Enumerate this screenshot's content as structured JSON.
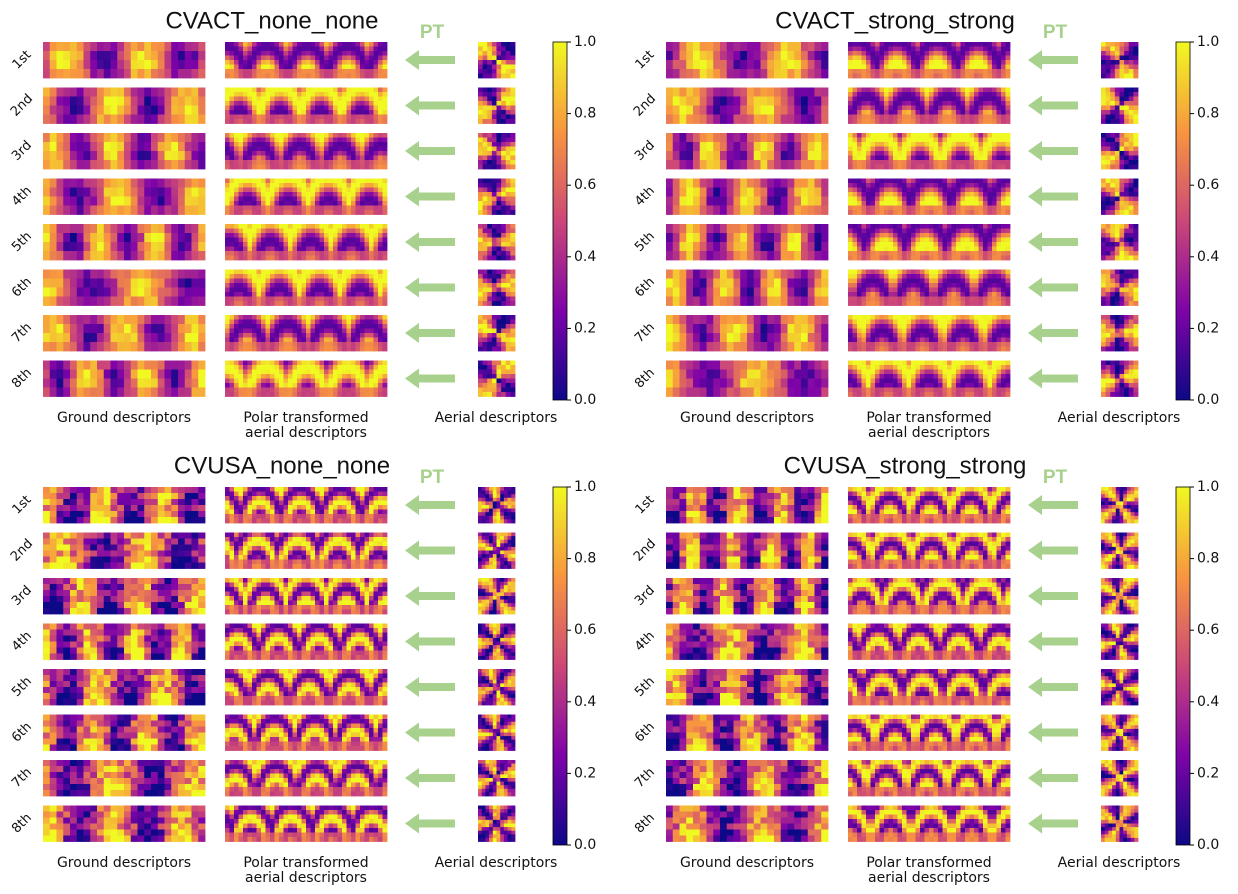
{
  "panels": [
    {
      "title": "CVACT_none_none",
      "pt_label": "PT",
      "row_labels": [
        "1st",
        "2nd",
        "3rd",
        "4th",
        "5th",
        "6th",
        "7th",
        "8th"
      ],
      "columns": {
        "ground": "Ground descriptors",
        "polar": [
          "Polar transformed",
          "aerial descriptors"
        ],
        "aerial": "Aerial descriptors"
      },
      "colorbar_ticks": [
        "0.0",
        "0.2",
        "0.4",
        "0.6",
        "0.8",
        "1.0"
      ]
    },
    {
      "title": "CVACT_strong_strong",
      "pt_label": "PT",
      "row_labels": [
        "1st",
        "2nd",
        "3rd",
        "4th",
        "5th",
        "6th",
        "7th",
        "8th"
      ],
      "columns": {
        "ground": "Ground descriptors",
        "polar": [
          "Polar transformed",
          "aerial descriptors"
        ],
        "aerial": "Aerial descriptors"
      },
      "colorbar_ticks": [
        "0.0",
        "0.2",
        "0.4",
        "0.6",
        "0.8",
        "1.0"
      ]
    },
    {
      "title": "CVUSA_none_none",
      "pt_label": "PT",
      "row_labels": [
        "1st",
        "2nd",
        "3rd",
        "4th",
        "5th",
        "6th",
        "7th",
        "8th"
      ],
      "columns": {
        "ground": "Ground descriptors",
        "polar": [
          "Polar transformed",
          "aerial descriptors"
        ],
        "aerial": "Aerial descriptors"
      },
      "colorbar_ticks": [
        "0.0",
        "0.2",
        "0.4",
        "0.6",
        "0.8",
        "1.0"
      ]
    },
    {
      "title": "CVUSA_strong_strong",
      "pt_label": "PT",
      "row_labels": [
        "1st",
        "2nd",
        "3rd",
        "4th",
        "5th",
        "6th",
        "7th",
        "8th"
      ],
      "columns": {
        "ground": "Ground descriptors",
        "polar": [
          "Polar transformed",
          "aerial descriptors"
        ],
        "aerial": "Aerial descriptors"
      },
      "colorbar_ticks": [
        "0.0",
        "0.2",
        "0.4",
        "0.6",
        "0.8",
        "1.0"
      ]
    }
  ]
}
